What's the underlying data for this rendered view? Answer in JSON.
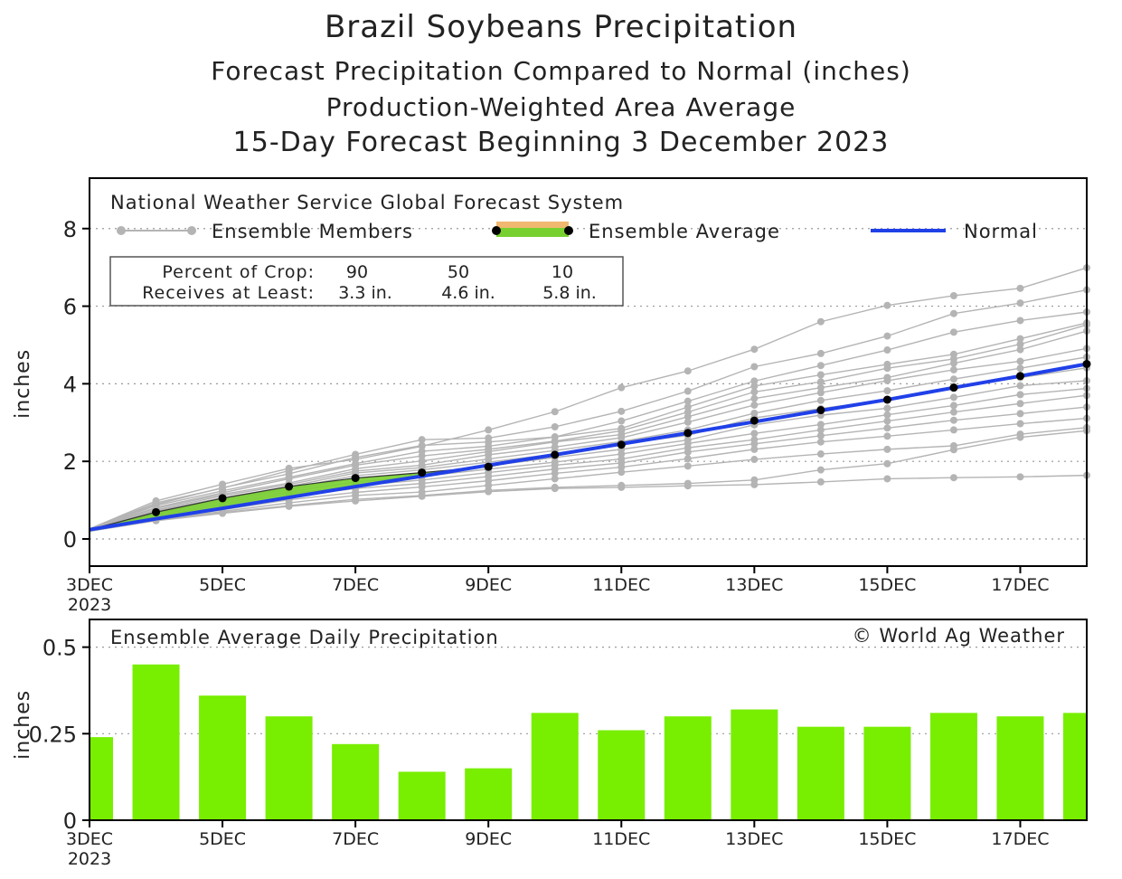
{
  "titles": {
    "main": "Brazil Soybeans Precipitation",
    "line2": "Forecast Precipitation Compared to Normal (inches)",
    "line3": "Production-Weighted Area Average",
    "line4": "15-Day Forecast Beginning 3 December 2023"
  },
  "legend": {
    "source": "National Weather Service Global Forecast System",
    "members": "Ensemble Members",
    "average": "Ensemble Average",
    "normal": "Normal"
  },
  "crop_box": {
    "row1_label": "Percent of Crop:",
    "row1_values": [
      "90",
      "50",
      "10"
    ],
    "row2_label": "Receives at Least:",
    "row2_values": [
      "3.3 in.",
      "4.6 in.",
      "5.8 in."
    ]
  },
  "credit": "© World Ag Weather",
  "colors": {
    "normal": "#2040e8",
    "average_fill": "#78d030",
    "average_band": "#f0b870",
    "members": "#b4b4b4",
    "bars": "#78ee00"
  },
  "chart_data": [
    {
      "type": "line",
      "ylabel": "inches",
      "x": [
        "3DEC",
        "4DEC",
        "5DEC",
        "6DEC",
        "7DEC",
        "8DEC",
        "9DEC",
        "10DEC",
        "11DEC",
        "12DEC",
        "13DEC",
        "14DEC",
        "15DEC",
        "16DEC",
        "17DEC",
        "18DEC"
      ],
      "x_tick_labels": [
        "3DEC",
        "5DEC",
        "7DEC",
        "9DEC",
        "11DEC",
        "13DEC",
        "15DEC",
        "17DEC"
      ],
      "x_first_sublabel": "2023",
      "yticks": [
        0,
        2,
        4,
        6,
        8
      ],
      "ylim": [
        -0.7,
        9.3
      ],
      "grid": "dotted horizontal",
      "series": [
        {
          "name": "Ensemble Average",
          "values": [
            0.24,
            0.69,
            1.05,
            1.35,
            1.57,
            1.71,
            1.86,
            2.17,
            2.43,
            2.73,
            3.05,
            3.32,
            3.59,
            3.9,
            4.2,
            4.51
          ]
        },
        {
          "name": "Normal",
          "values": [
            0.24,
            0.52,
            0.79,
            1.07,
            1.35,
            1.62,
            1.9,
            2.17,
            2.45,
            2.73,
            3.02,
            3.31,
            3.59,
            3.9,
            4.2,
            4.51
          ]
        }
      ],
      "ensemble_members": [
        [
          0.26,
          0.98,
          1.41,
          1.82,
          2.05,
          2.39,
          2.81,
          3.28,
          3.9,
          4.33,
          4.89,
          5.6,
          6.02,
          6.27,
          6.46,
          6.99
        ],
        [
          0.25,
          0.93,
          1.31,
          1.76,
          2.18,
          2.56,
          2.6,
          2.89,
          3.29,
          3.81,
          4.44,
          4.78,
          5.23,
          5.81,
          6.08,
          6.42
        ],
        [
          0.25,
          0.89,
          1.32,
          1.68,
          2.1,
          2.41,
          2.5,
          2.63,
          3.04,
          3.55,
          4.07,
          4.47,
          4.87,
          5.33,
          5.63,
          5.85
        ],
        [
          0.24,
          0.86,
          1.24,
          1.59,
          1.94,
          2.26,
          2.39,
          2.63,
          2.85,
          3.4,
          3.94,
          4.23,
          4.5,
          4.76,
          5.16,
          5.57
        ],
        [
          0.24,
          0.81,
          1.19,
          1.55,
          1.9,
          2.14,
          2.31,
          2.52,
          2.79,
          3.27,
          3.79,
          4.05,
          4.4,
          4.64,
          5.02,
          5.52
        ],
        [
          0.24,
          0.79,
          1.15,
          1.44,
          1.81,
          2.01,
          2.25,
          2.5,
          2.69,
          3.15,
          3.62,
          3.9,
          4.16,
          4.53,
          4.88,
          5.36
        ],
        [
          0.23,
          0.75,
          1.11,
          1.4,
          1.75,
          1.9,
          2.17,
          2.37,
          2.61,
          3.01,
          3.45,
          3.77,
          4.08,
          4.36,
          4.58,
          4.91
        ],
        [
          0.23,
          0.72,
          1.06,
          1.35,
          1.7,
          1.84,
          2.06,
          2.28,
          2.51,
          2.81,
          3.24,
          3.57,
          3.82,
          4.12,
          4.4,
          4.69
        ],
        [
          0.23,
          0.68,
          1.02,
          1.31,
          1.63,
          1.78,
          1.98,
          2.19,
          2.45,
          2.67,
          3.12,
          3.36,
          3.59,
          3.92,
          4.16,
          4.41
        ],
        [
          0.22,
          0.66,
          0.98,
          1.27,
          1.56,
          1.68,
          1.88,
          2.1,
          2.31,
          2.55,
          2.94,
          3.19,
          3.37,
          3.65,
          3.95,
          4.08
        ],
        [
          0.22,
          0.62,
          0.93,
          1.22,
          1.47,
          1.61,
          1.8,
          1.98,
          2.19,
          2.46,
          2.72,
          2.95,
          3.2,
          3.44,
          3.72,
          3.88
        ],
        [
          0.22,
          0.58,
          0.88,
          1.17,
          1.37,
          1.52,
          1.71,
          1.9,
          2.06,
          2.35,
          2.56,
          2.81,
          3.04,
          3.27,
          3.49,
          3.7
        ],
        [
          0.21,
          0.55,
          0.82,
          1.09,
          1.3,
          1.43,
          1.61,
          1.8,
          1.96,
          2.24,
          2.45,
          2.66,
          2.86,
          3.06,
          3.23,
          3.4
        ],
        [
          0.21,
          0.51,
          0.75,
          1.01,
          1.2,
          1.34,
          1.5,
          1.69,
          1.85,
          2.07,
          2.31,
          2.5,
          2.65,
          2.81,
          2.97,
          3.11
        ],
        [
          0.2,
          0.5,
          0.71,
          0.93,
          1.12,
          1.21,
          1.38,
          1.55,
          1.72,
          1.88,
          2.05,
          2.19,
          2.31,
          2.4,
          2.7,
          2.87
        ],
        [
          0.2,
          0.48,
          0.68,
          0.86,
          1.02,
          1.12,
          1.25,
          1.33,
          1.38,
          1.43,
          1.52,
          1.78,
          1.94,
          2.3,
          2.62,
          2.79
        ],
        [
          0.2,
          0.47,
          0.66,
          0.84,
          0.98,
          1.1,
          1.22,
          1.3,
          1.33,
          1.37,
          1.4,
          1.47,
          1.55,
          1.58,
          1.6,
          1.64
        ]
      ]
    },
    {
      "type": "bar",
      "title": "Ensemble Average Daily Precipitation",
      "ylabel": "inches",
      "categories": [
        "3DEC",
        "4DEC",
        "5DEC",
        "6DEC",
        "7DEC",
        "8DEC",
        "9DEC",
        "10DEC",
        "11DEC",
        "12DEC",
        "13DEC",
        "14DEC",
        "15DEC",
        "16DEC",
        "17DEC",
        "18DEC"
      ],
      "values": [
        0.24,
        0.45,
        0.36,
        0.3,
        0.22,
        0.14,
        0.15,
        0.31,
        0.26,
        0.3,
        0.32,
        0.27,
        0.27,
        0.31,
        0.3,
        0.31
      ],
      "yticks": [
        0,
        0.25,
        0.5
      ],
      "ytick_labels": [
        "0",
        "0.25",
        "0.5"
      ],
      "ylim": [
        0,
        0.58
      ],
      "grid": "dotted horizontal"
    }
  ]
}
